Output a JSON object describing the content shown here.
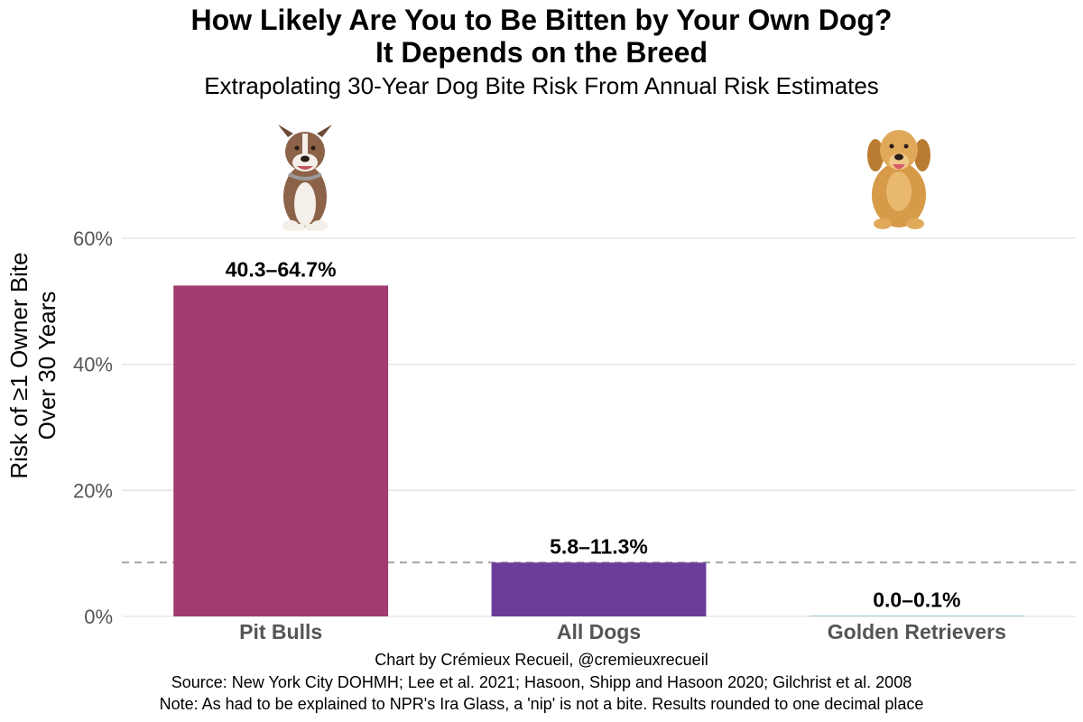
{
  "chart_data": {
    "type": "bar",
    "title_line1": "How Likely Are You to Be Bitten by Your Own Dog?",
    "title_line2": "It Depends on the Breed",
    "subtitle": "Extrapolating 30-Year Dog Bite Risk From Annual Risk Estimates",
    "ylabel_line1": "Risk of ≥1 Owner Bite",
    "ylabel_line2": "Over 30 Years",
    "xlabel": "",
    "ylim": [
      0,
      60
    ],
    "yticks": [
      0,
      20,
      40,
      60
    ],
    "ytick_labels": [
      "0%",
      "20%",
      "40%",
      "60%"
    ],
    "categories": [
      "Pit Bulls",
      "All Dogs",
      "Golden Retrievers"
    ],
    "values": [
      52.5,
      8.55,
      0.05
    ],
    "data_labels": [
      "40.3–64.7%",
      "5.8–11.3%",
      "0.0–0.1%"
    ],
    "bar_colors": [
      "#a13b70",
      "#6a3d9a",
      "#a6c8d8"
    ],
    "reference_line": 8.55,
    "grid": true,
    "legend": "none"
  },
  "images": {
    "pitbull": "pit-bull-dog-photo",
    "golden": "golden-retriever-dog-photo"
  },
  "caption": {
    "credit": "Chart by Crémieux Recueil, @cremieuxrecueil",
    "source": "Source: New York City DOHMH; Lee et al. 2021; Hasoon, Shipp and Hasoon 2020; Gilchrist et al. 2008",
    "note": "Note: As had to be explained to NPR's Ira Glass, a 'nip' is not a bite. Results rounded to one decimal place"
  }
}
